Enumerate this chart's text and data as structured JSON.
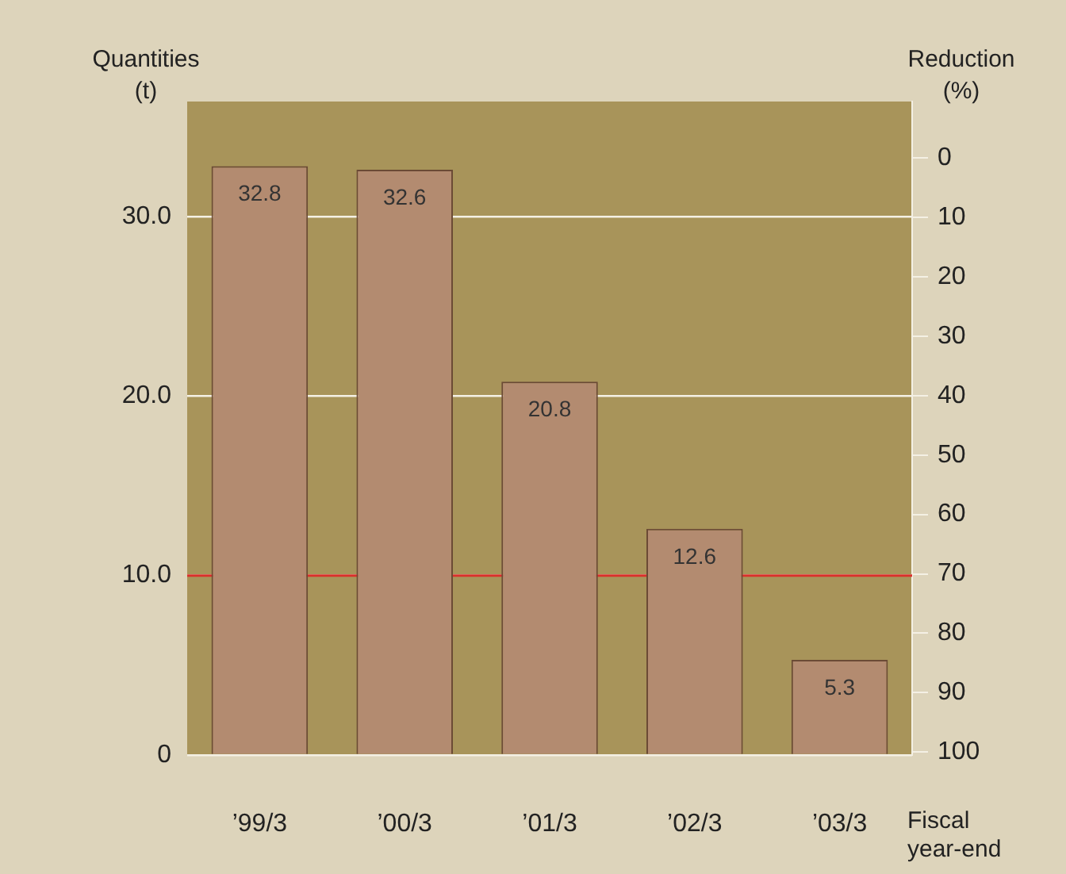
{
  "chart_data": {
    "type": "bar",
    "categories": [
      "’99/3",
      "’00/3",
      "’01/3",
      "’02/3",
      "’03/3"
    ],
    "values": [
      32.8,
      32.6,
      20.8,
      12.6,
      5.3
    ],
    "color": "#b38b70",
    "ylabel": "Quantities (t)",
    "y2label": "Reduction (%)",
    "xlabel": "Fiscal year-end",
    "ylim": [
      0,
      36.4
    ],
    "yticks": [
      0,
      {
        "value": 10,
        "label": "10.0"
      },
      {
        "value": 20,
        "label": "20.0"
      },
      {
        "value": 30,
        "label": "30.0"
      }
    ],
    "y2lim": [
      100.5,
      -9.5
    ],
    "y2ticks": [
      0,
      10,
      20,
      30,
      40,
      50,
      60,
      70,
      80,
      90,
      100
    ],
    "ref_lines": [
      {
        "axis": "y",
        "value": 10,
        "color": "#d9302a"
      }
    ],
    "grid": "y",
    "data_labels": true,
    "legend": false
  }
}
